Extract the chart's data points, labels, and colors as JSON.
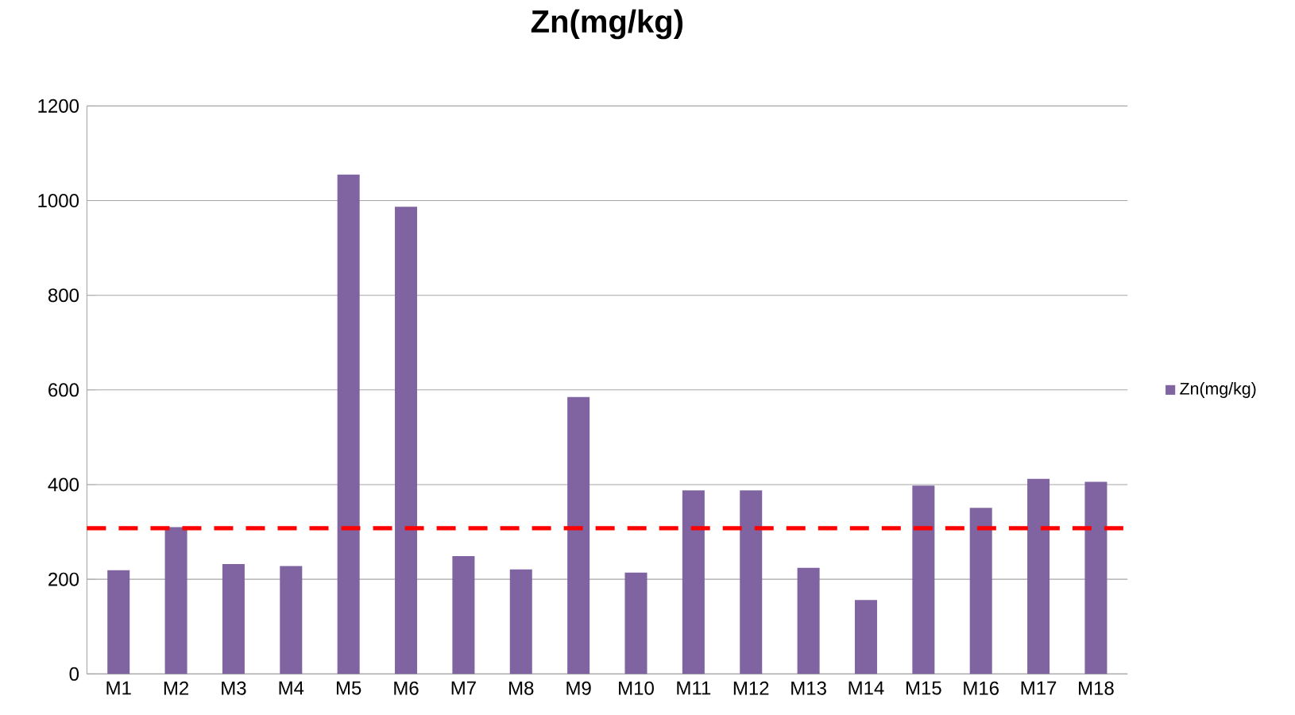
{
  "chart_data": {
    "type": "bar",
    "title": "Zn(mg/kg)",
    "categories": [
      "M1",
      "M2",
      "M3",
      "M4",
      "M5",
      "M6",
      "M7",
      "M8",
      "M9",
      "M10",
      "M11",
      "M12",
      "M13",
      "M14",
      "M15",
      "M16",
      "M17",
      "M18"
    ],
    "series": [
      {
        "name": "Zn(mg/kg)",
        "color": "#8064a2",
        "values": [
          219,
          310,
          232,
          228,
          1055,
          987,
          249,
          221,
          585,
          214,
          388,
          388,
          224,
          156,
          398,
          351,
          412,
          406
        ]
      }
    ],
    "ylim": [
      0,
      1200
    ],
    "yticks": [
      0,
      200,
      400,
      600,
      800,
      1000,
      1200
    ],
    "grid": "y",
    "legend": "right",
    "ref_lines": [
      {
        "axis": "y",
        "value": 308,
        "color": "#ff0000",
        "line_style": "dashed"
      }
    ]
  }
}
